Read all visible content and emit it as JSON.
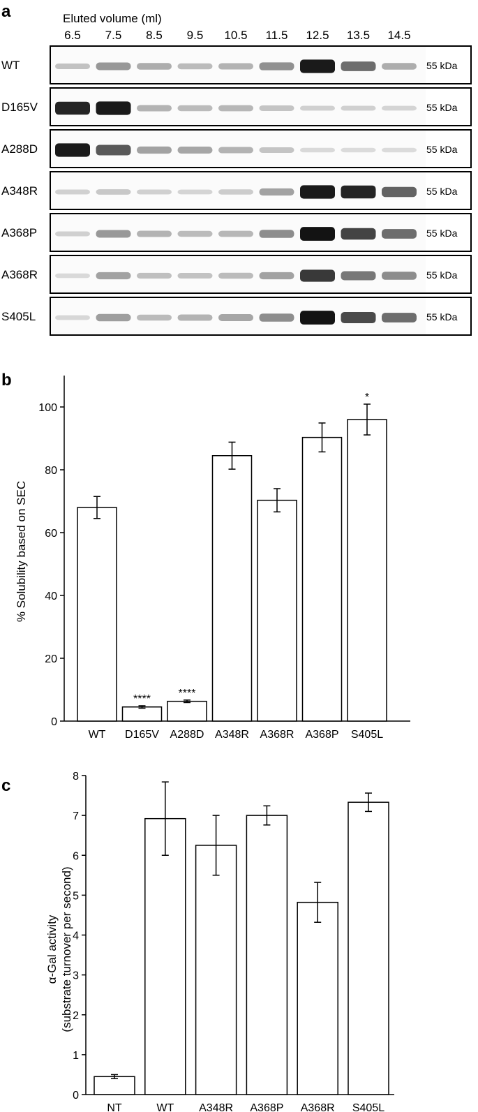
{
  "panels": {
    "a": "a",
    "b": "b",
    "c": "c"
  },
  "blot": {
    "header": "Eluted volume (ml)",
    "volumes": [
      "6.5",
      "7.5",
      "8.5",
      "9.5",
      "10.5",
      "11.5",
      "12.5",
      "13.5",
      "14.5"
    ],
    "marker": "55 kDa",
    "rows": [
      {
        "label": "WT",
        "intensity": [
          0.15,
          0.35,
          0.25,
          0.18,
          0.22,
          0.38,
          0.95,
          0.55,
          0.25
        ]
      },
      {
        "label": "D165V",
        "intensity": [
          0.9,
          0.95,
          0.22,
          0.18,
          0.2,
          0.14,
          0.08,
          0.08,
          0.06
        ]
      },
      {
        "label": "A288D",
        "intensity": [
          0.95,
          0.65,
          0.3,
          0.28,
          0.22,
          0.14,
          0.04,
          0.03,
          0.03
        ]
      },
      {
        "label": "A348R",
        "intensity": [
          0.08,
          0.12,
          0.08,
          0.06,
          0.1,
          0.3,
          0.95,
          0.9,
          0.6
        ]
      },
      {
        "label": "A368P",
        "intensity": [
          0.08,
          0.35,
          0.22,
          0.18,
          0.2,
          0.4,
          0.98,
          0.75,
          0.55
        ]
      },
      {
        "label": "A368R",
        "intensity": [
          0.04,
          0.3,
          0.16,
          0.15,
          0.18,
          0.3,
          0.8,
          0.5,
          0.4
        ]
      },
      {
        "label": "S405L",
        "intensity": [
          0.05,
          0.32,
          0.18,
          0.22,
          0.28,
          0.4,
          0.98,
          0.72,
          0.55
        ]
      }
    ]
  },
  "chart_data": [
    {
      "type": "bar",
      "panel": "b",
      "title": "",
      "xlabel": "",
      "ylabel": "% Solubility based on SEC",
      "ylim": [
        0,
        110
      ],
      "yticks": [
        "0",
        "20",
        "40",
        "60",
        "80",
        "100"
      ],
      "categories": [
        "WT",
        "D165V",
        "A288D",
        "A348R",
        "A368R",
        "A368P",
        "S405L"
      ],
      "values": [
        68,
        4.5,
        6.3,
        84.5,
        70.3,
        90.3,
        96
      ],
      "errors": [
        3.5,
        0.4,
        0.4,
        4.3,
        3.7,
        4.6,
        4.9
      ],
      "annotations": [
        "",
        "****",
        "****",
        "",
        "",
        "",
        "*"
      ],
      "grid": false
    },
    {
      "type": "bar",
      "panel": "c",
      "title": "",
      "xlabel": "",
      "ylabel_line1": "α-Gal activity",
      "ylabel_line2": "(substrate turnover per second)",
      "ylim": [
        0,
        8
      ],
      "yticks": [
        "0",
        "1",
        "2",
        "3",
        "4",
        "5",
        "6",
        "7",
        "8"
      ],
      "categories": [
        "NT",
        "WT",
        "A348R",
        "A368P",
        "A368R",
        "S405L"
      ],
      "values": [
        0.45,
        6.92,
        6.25,
        7.0,
        4.82,
        7.33
      ],
      "errors": [
        0.05,
        0.92,
        0.75,
        0.24,
        0.5,
        0.23
      ],
      "grid": false
    }
  ]
}
